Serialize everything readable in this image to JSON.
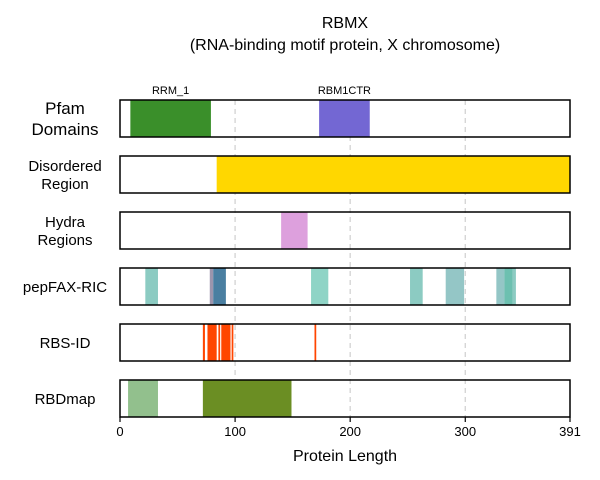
{
  "chart_data": {
    "type": "track",
    "title": "RBMX",
    "subtitle": "(RNA-binding motif protein, X chromosome)",
    "xlabel": "Protein Length",
    "xlim": [
      0,
      391
    ],
    "xticks": [
      0,
      100,
      200,
      300,
      391
    ],
    "grid": "x-dashed",
    "tracks": [
      {
        "label": [
          "Pfam",
          "Domains"
        ],
        "features": [
          {
            "start": 9,
            "end": 79,
            "color": "#3a8f2a",
            "label": "RRM_1"
          },
          {
            "start": 173,
            "end": 217,
            "color": "#7367d3",
            "label": "RBM1CTR"
          }
        ]
      },
      {
        "label": [
          "Disordered",
          "Region"
        ],
        "features": [
          {
            "start": 84,
            "end": 391,
            "color": "#ffd700"
          }
        ]
      },
      {
        "label": [
          "Hydra",
          "Regions"
        ],
        "features": [
          {
            "start": 140,
            "end": 163,
            "color": "#dda0dd"
          }
        ]
      },
      {
        "label": [
          "pepFAX-RIC"
        ],
        "features": [
          {
            "start": 22,
            "end": 33,
            "color": "#8ccbc2"
          },
          {
            "start": 78,
            "end": 81,
            "color": "#9c95ad"
          },
          {
            "start": 81,
            "end": 92,
            "color": "#4a7fa1"
          },
          {
            "start": 166,
            "end": 181,
            "color": "#8fd4c6"
          },
          {
            "start": 252,
            "end": 263,
            "color": "#8ccbc2"
          },
          {
            "start": 283,
            "end": 299,
            "color": "#94c6c6"
          },
          {
            "start": 327,
            "end": 334,
            "color": "#94c6c6"
          },
          {
            "start": 334,
            "end": 341,
            "color": "#6cc0b0"
          },
          {
            "start": 341,
            "end": 344,
            "color": "#8ccbc2"
          }
        ]
      },
      {
        "label": [
          "RBS-ID"
        ],
        "features": [
          {
            "start": 72,
            "end": 73.8,
            "color": "#ff4500"
          },
          {
            "start": 76,
            "end": 84,
            "color": "#ff4500"
          },
          {
            "start": 85.5,
            "end": 87,
            "color": "#ff4500"
          },
          {
            "start": 88,
            "end": 96,
            "color": "#ff4500"
          },
          {
            "start": 97,
            "end": 98.5,
            "color": "#ff4500"
          },
          {
            "start": 169,
            "end": 170.5,
            "color": "#ff4500"
          }
        ]
      },
      {
        "label": [
          "RBDmap"
        ],
        "features": [
          {
            "start": 7,
            "end": 33,
            "color": "#92c08d"
          },
          {
            "start": 72,
            "end": 149,
            "color": "#6b8e23"
          }
        ]
      }
    ]
  }
}
